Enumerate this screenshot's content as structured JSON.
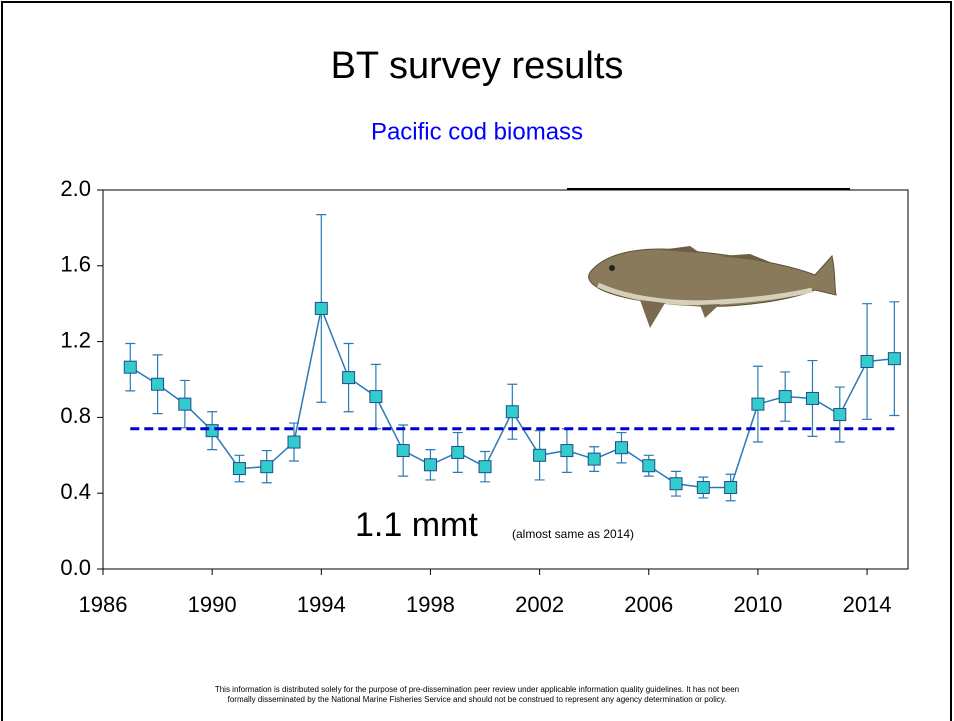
{
  "chart_data": {
    "type": "line",
    "title": "BT survey results",
    "subtitle": "Pacific cod biomass",
    "x": [
      1987,
      1988,
      1989,
      1990,
      1991,
      1992,
      1993,
      1994,
      1995,
      1996,
      1997,
      1998,
      1999,
      2000,
      2001,
      2002,
      2003,
      2004,
      2005,
      2006,
      2007,
      2008,
      2009,
      2010,
      2011,
      2012,
      2013,
      2014,
      2015
    ],
    "series": [
      {
        "color": "#2a7ab8",
        "marker_color": "#33cccc",
        "values": [
          1.065,
          0.975,
          0.87,
          0.73,
          0.53,
          0.54,
          0.67,
          1.375,
          1.01,
          0.91,
          0.625,
          0.55,
          0.615,
          0.54,
          0.83,
          0.6,
          0.625,
          0.58,
          0.64,
          0.545,
          0.45,
          0.43,
          0.43,
          0.87,
          0.91,
          0.9,
          0.815,
          1.095,
          1.11
        ],
        "errors": [
          0.125,
          0.155,
          0.125,
          0.1,
          0.07,
          0.085,
          0.1,
          0.495,
          0.18,
          0.17,
          0.135,
          0.08,
          0.105,
          0.08,
          0.145,
          0.13,
          0.115,
          0.065,
          0.08,
          0.055,
          0.065,
          0.055,
          0.07,
          0.2,
          0.13,
          0.2,
          0.145,
          0.305,
          0.3
        ]
      }
    ],
    "reference_value": 0.74,
    "reference_color": "#0000cc",
    "xlim": [
      1986,
      2015.5
    ],
    "xticks": [
      1986,
      1990,
      1994,
      1998,
      2002,
      2006,
      2010,
      2014
    ],
    "ylim": [
      0,
      2
    ],
    "yticks": [
      {
        "value": 0,
        "label": "0.0"
      },
      0.4,
      0.8,
      1.2,
      1.6,
      {
        "value": 2,
        "label": "2.0"
      }
    ],
    "annotation": "1.1 mmt",
    "annotation_note": "(almost same as 2014)",
    "footer": [
      "This information is distributed solely for the purpose of pre-dissemination peer review under applicable information quality guidelines. It has not been",
      "formally disseminated by the National Marine Fisheries Service and should not be construed to represent any agency determination or policy."
    ]
  }
}
